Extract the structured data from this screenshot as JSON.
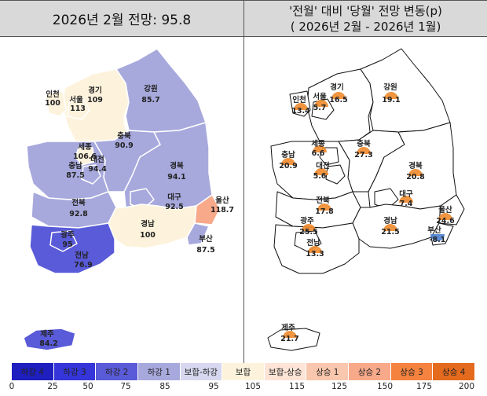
{
  "header": {
    "left_title": "2026년 2월 전망: 95.8",
    "right_title_line1": "'전월' 대비 '당월' 전망 변동(p)",
    "right_title_line2": "( 2026년 2월 -   2026년 1월)"
  },
  "left_map": {
    "regions": [
      {
        "id": "incheon",
        "name": "인천",
        "value": "100",
        "color": "#fdf3dc"
      },
      {
        "id": "seoul",
        "name": "서울",
        "value": "113",
        "color": "#fdf3dc"
      },
      {
        "id": "gyeonggi",
        "name": "경기",
        "value": "109",
        "color": "#fdf3dc"
      },
      {
        "id": "gangwon",
        "name": "강원",
        "value": "85.7",
        "color": "#a7a9dd"
      },
      {
        "id": "chungbuk",
        "name": "충북",
        "value": "90.9",
        "color": "#a7a9dd"
      },
      {
        "id": "sejong",
        "name": "세종",
        "value": "106.6",
        "color": "#fdf3dc"
      },
      {
        "id": "chungnam",
        "name": "충남",
        "value": "87.5",
        "color": "#a7a9dd"
      },
      {
        "id": "daejeon",
        "name": "대전",
        "value": "94.4",
        "color": "#a7a9dd"
      },
      {
        "id": "gyeongbuk",
        "name": "경북",
        "value": "94.1",
        "color": "#a7a9dd"
      },
      {
        "id": "daegu",
        "name": "대구",
        "value": "92.5",
        "color": "#a7a9dd"
      },
      {
        "id": "jeonbuk",
        "name": "전북",
        "value": "92.8",
        "color": "#a7a9dd"
      },
      {
        "id": "gyeongnam",
        "name": "경남",
        "value": "100",
        "color": "#fdf3dc"
      },
      {
        "id": "ulsan",
        "name": "울산",
        "value": "118.7",
        "color": "#f7a98a"
      },
      {
        "id": "busan",
        "name": "부산",
        "value": "87.5",
        "color": "#a7a9dd"
      },
      {
        "id": "gwangju",
        "name": "광주",
        "value": "95",
        "color": "#5a5bd8"
      },
      {
        "id": "jeonnam",
        "name": "전남",
        "value": "76.9",
        "color": "#5a5bd8"
      },
      {
        "id": "jeju",
        "name": "제주",
        "value": "84.2",
        "color": "#5a5bd8"
      }
    ]
  },
  "right_map": {
    "changes": [
      {
        "id": "incheon",
        "name": "인천",
        "value": "13.4",
        "direction": "up"
      },
      {
        "id": "seoul",
        "name": "서울",
        "value": "5.7",
        "direction": "up"
      },
      {
        "id": "gyeonggi",
        "name": "경기",
        "value": "16.5",
        "direction": "up"
      },
      {
        "id": "gangwon",
        "name": "강원",
        "value": "19.1",
        "direction": "up"
      },
      {
        "id": "chungnam",
        "name": "충남",
        "value": "20.9",
        "direction": "up"
      },
      {
        "id": "sejong",
        "name": "세종",
        "value": "6.6",
        "direction": "up"
      },
      {
        "id": "chungbuk",
        "name": "충북",
        "value": "27.3",
        "direction": "up"
      },
      {
        "id": "daejeon",
        "name": "대전",
        "value": "5.6",
        "direction": "up"
      },
      {
        "id": "gyeongbuk",
        "name": "경북",
        "value": "20.8",
        "direction": "up"
      },
      {
        "id": "daegu",
        "name": "대구",
        "value": "7.4",
        "direction": "up"
      },
      {
        "id": "jeonbuk",
        "name": "전북",
        "value": "17.8",
        "direction": "up"
      },
      {
        "id": "ulsan",
        "name": "울산",
        "value": "24.6",
        "direction": "up"
      },
      {
        "id": "gyeongnam",
        "name": "경남",
        "value": "21.5",
        "direction": "up"
      },
      {
        "id": "busan",
        "name": "부산",
        "value": "-8.1",
        "direction": "down"
      },
      {
        "id": "gwangju",
        "name": "광주",
        "value": "25.5",
        "direction": "up"
      },
      {
        "id": "jeonnam",
        "name": "전남",
        "value": "13.3",
        "direction": "up"
      },
      {
        "id": "jeju",
        "name": "제주",
        "value": "21.7",
        "direction": "up"
      }
    ],
    "up_color": "#f08a2c",
    "down_color": "#4a7fd0"
  },
  "legend": {
    "items": [
      {
        "label": "하강 4",
        "color": "#1f1fbf"
      },
      {
        "label": "하강 3",
        "color": "#3535d9"
      },
      {
        "label": "하강 2",
        "color": "#5a5bd8"
      },
      {
        "label": "하강 1",
        "color": "#a7a9dd"
      },
      {
        "label": "보합-하강",
        "color": "#d7d8ef"
      },
      {
        "label": "보합",
        "color": "#fdf3dc"
      },
      {
        "label": "보합-상승",
        "color": "#fde4d6"
      },
      {
        "label": "상승 1",
        "color": "#f9c7ad"
      },
      {
        "label": "상승 2",
        "color": "#f7a98a"
      },
      {
        "label": "상승 3",
        "color": "#f5823f"
      },
      {
        "label": "상승 4",
        "color": "#e46a1e"
      }
    ],
    "ticks": [
      "0",
      "25",
      "50",
      "75",
      "85",
      "95",
      "105",
      "115",
      "125",
      "150",
      "175",
      "200"
    ]
  }
}
